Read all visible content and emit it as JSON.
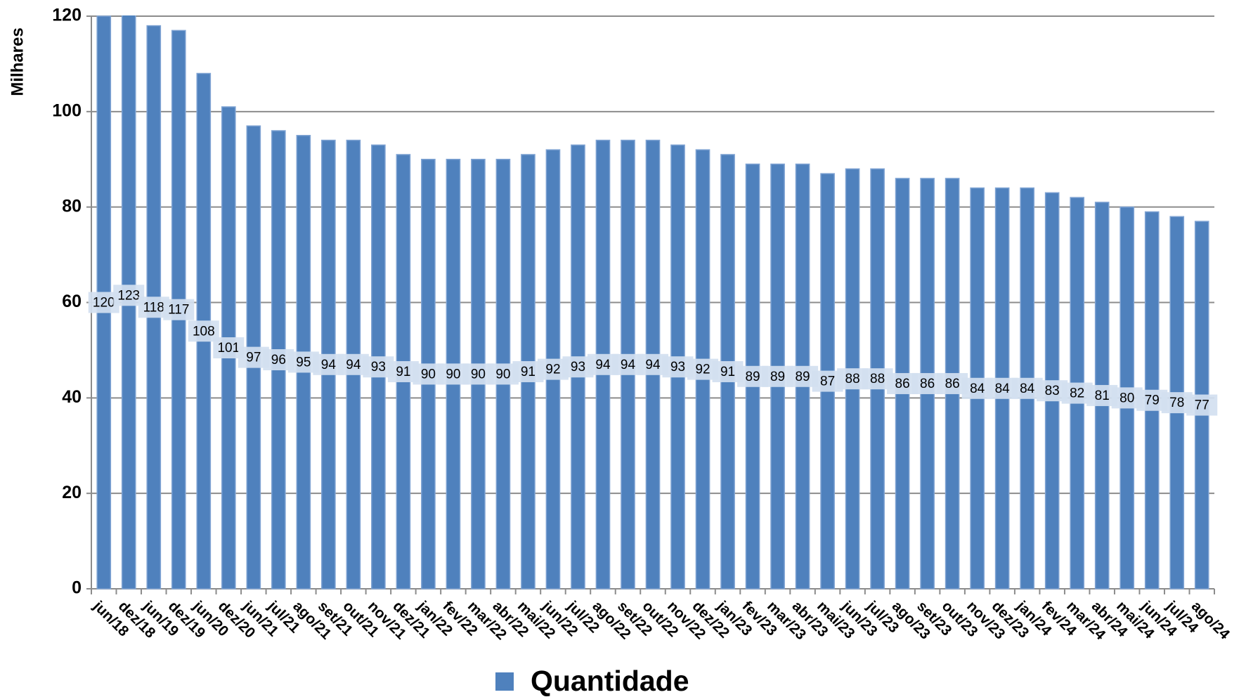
{
  "chart_data": {
    "type": "bar",
    "y_label": "Milhares",
    "categories": [
      "jun/18",
      "dez/18",
      "jun/19",
      "dez/19",
      "jun/20",
      "dez/20",
      "jun/21",
      "jul/21",
      "ago/21",
      "set/21",
      "out/21",
      "nov/21",
      "dez/21",
      "jan/22",
      "fev/22",
      "mar/22",
      "abr/22",
      "mai/22",
      "jun/22",
      "jul/22",
      "ago/22",
      "set/22",
      "out/22",
      "nov/22",
      "dez/22",
      "jan/23",
      "fev/23",
      "mar/23",
      "abr/23",
      "mai/23",
      "jun/23",
      "jul/23",
      "ago/23",
      "set/23",
      "out/23",
      "nov/23",
      "dez/23",
      "jan/24",
      "fev/24",
      "mar/24",
      "abr/24",
      "mai/24",
      "jun/24",
      "jul/24",
      "ago/24"
    ],
    "series": [
      {
        "name": "Quantidade",
        "color": "#4f81bd",
        "values": [
          120,
          123,
          118,
          117,
          108,
          101,
          97,
          96,
          95,
          94,
          94,
          93,
          91,
          90,
          90,
          90,
          90,
          91,
          92,
          93,
          94,
          94,
          94,
          93,
          92,
          91,
          89,
          89,
          89,
          87,
          88,
          88,
          86,
          86,
          86,
          84,
          84,
          84,
          83,
          82,
          81,
          80,
          79,
          78,
          77
        ]
      }
    ],
    "ylim": [
      0,
      120
    ],
    "yticks": [
      0,
      20,
      40,
      60,
      80,
      100,
      120
    ],
    "grid": true,
    "legend": "bottom"
  }
}
